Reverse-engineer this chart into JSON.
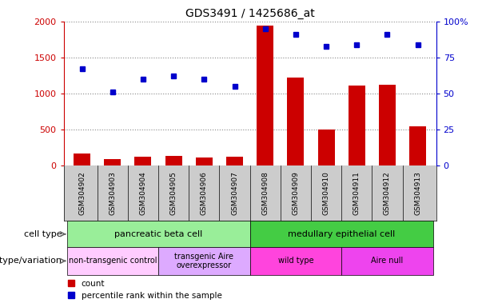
{
  "title": "GDS3491 / 1425686_at",
  "samples": [
    "GSM304902",
    "GSM304903",
    "GSM304904",
    "GSM304905",
    "GSM304906",
    "GSM304907",
    "GSM304908",
    "GSM304909",
    "GSM304910",
    "GSM304911",
    "GSM304912",
    "GSM304913"
  ],
  "counts": [
    170,
    90,
    130,
    140,
    110,
    130,
    1940,
    1220,
    500,
    1110,
    1120,
    550
  ],
  "percentiles": [
    67,
    51,
    60,
    62,
    60,
    55,
    95,
    91,
    83,
    84,
    91,
    84
  ],
  "ylim_left": [
    0,
    2000
  ],
  "ylim_right": [
    0,
    100
  ],
  "yticks_left": [
    0,
    500,
    1000,
    1500,
    2000
  ],
  "ytick_labels_left": [
    "0",
    "500",
    "1000",
    "1500",
    "2000"
  ],
  "yticks_right": [
    0,
    25,
    50,
    75,
    100
  ],
  "ytick_labels_right": [
    "0",
    "25",
    "50",
    "75",
    "100%"
  ],
  "bar_color": "#cc0000",
  "dot_color": "#0000cc",
  "cell_type_row": [
    {
      "label": "pancreatic beta cell",
      "start": 0,
      "end": 6,
      "color": "#99ee99"
    },
    {
      "label": "medullary epithelial cell",
      "start": 6,
      "end": 12,
      "color": "#44cc44"
    }
  ],
  "genotype_row": [
    {
      "label": "non-transgenic control",
      "start": 0,
      "end": 3,
      "color": "#ffccff"
    },
    {
      "label": "transgenic Aire\noverexpressor",
      "start": 3,
      "end": 6,
      "color": "#ddaaff"
    },
    {
      "label": "wild type",
      "start": 6,
      "end": 9,
      "color": "#ff44dd"
    },
    {
      "label": "Aire null",
      "start": 9,
      "end": 12,
      "color": "#ee44ee"
    }
  ],
  "legend_count_color": "#cc0000",
  "legend_pct_color": "#0000cc",
  "bg_color": "#ffffff",
  "grid_color": "#888888",
  "sample_bg_color": "#cccccc"
}
